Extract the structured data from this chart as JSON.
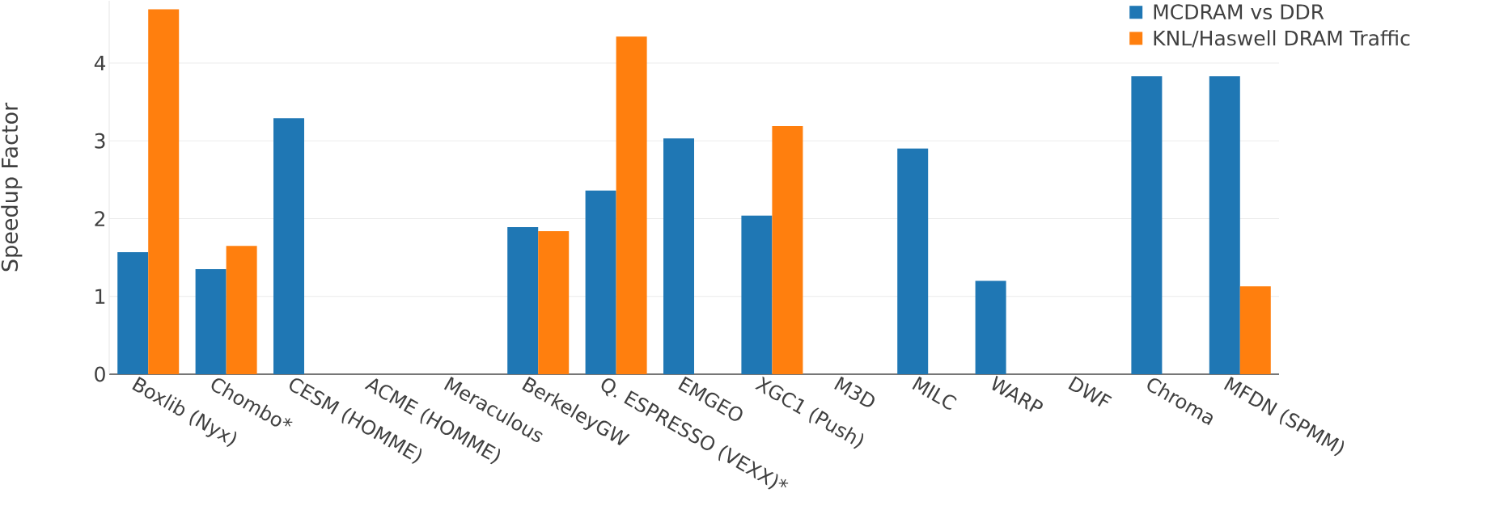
{
  "chart_data": {
    "type": "bar",
    "ylabel": "Speedup Factor",
    "categories": [
      "Boxlib (Nyx)",
      "Chombo*",
      "CESM (HOMME)",
      "ACME (HOMME)",
      "Meraculous",
      "BerkeleyGW",
      "Q. ESPRESSO (VEXX)*",
      "EMGEO",
      "XGC1 (Push)",
      "M3D",
      "MILC",
      "WARP",
      "DWF",
      "Chroma",
      "MFDN (SPMM)"
    ],
    "series": [
      {
        "name": "MCDRAM vs DDR",
        "color": "#1f77b4",
        "values": [
          1.57,
          1.35,
          3.29,
          null,
          null,
          1.89,
          2.36,
          3.03,
          2.04,
          null,
          2.9,
          1.2,
          null,
          3.83,
          3.83
        ]
      },
      {
        "name": "KNL/Haswell DRAM Traffic",
        "color": "#ff7f0e",
        "values": [
          4.69,
          1.65,
          null,
          null,
          null,
          1.84,
          4.34,
          null,
          3.19,
          null,
          null,
          null,
          null,
          null,
          1.13
        ]
      }
    ],
    "ylim": [
      0,
      4.8
    ],
    "yticks": [
      0,
      1,
      2,
      3,
      4
    ],
    "grid": "y",
    "legend": "top right"
  }
}
